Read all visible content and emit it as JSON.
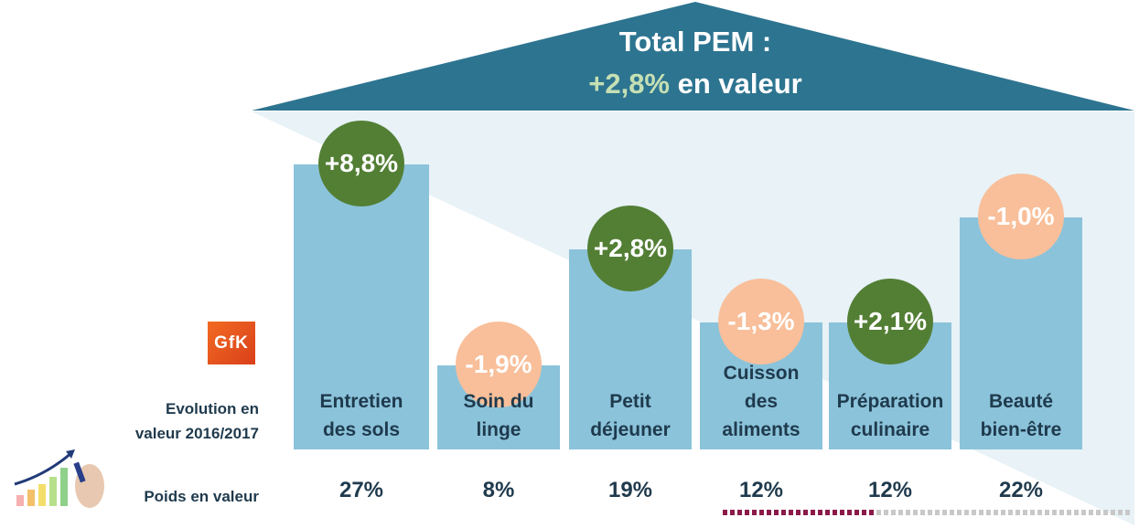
{
  "header": {
    "title": "Total PEM :",
    "value": "+2,8%",
    "value_suffix": " en valeur"
  },
  "logo": {
    "text": "GfK"
  },
  "row_labels": {
    "evolution": "Evolution en\nvaleur 2016/2017",
    "weight": "Poids en valeur"
  },
  "colors": {
    "roof": "#2d7490",
    "bar": "#8bc3da",
    "positive": "#537f35",
    "negative": "#f8bf9a",
    "value_highlight": "#c6e0b4"
  },
  "chart_data": {
    "type": "bar",
    "categories": [
      "Entretien\ndes sols",
      "Soin du\nlinge",
      "Petit\ndéjeuner",
      "Cuisson\ndes\naliments",
      "Préparation\nculinaire",
      "Beauté\nbien-être"
    ],
    "values": [
      27,
      8,
      19,
      12,
      12,
      22
    ],
    "weight_labels": [
      "27%",
      "8%",
      "19%",
      "12%",
      "12%",
      "22%"
    ],
    "evolution": [
      8.8,
      -1.9,
      2.8,
      -1.3,
      2.1,
      -1.0
    ],
    "evolution_labels": [
      "+8,8%",
      "-1,9%",
      "+2,8%",
      "-1,3%",
      "+2,1%",
      "-1,0%"
    ],
    "total_evolution": 2.8
  }
}
